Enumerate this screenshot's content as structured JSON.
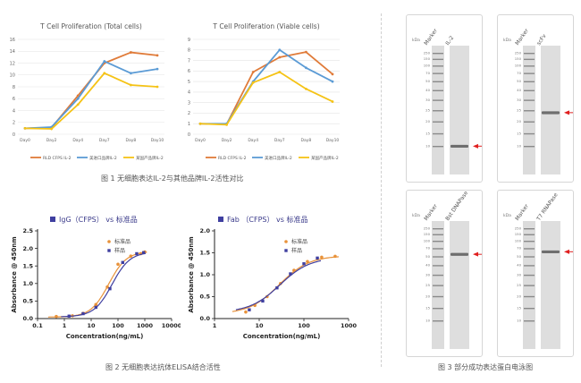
{
  "chart_data": [
    {
      "type": "line",
      "title": "T Cell Proliferation (Total cells)",
      "categories": [
        "Day0",
        "Day2",
        "Day4",
        "Day7",
        "Day8",
        "Day10"
      ],
      "ylim": [
        0,
        16
      ],
      "yticks": [
        0,
        2,
        4,
        6,
        8,
        10,
        12,
        14,
        16
      ],
      "series": [
        {
          "name": "RLD CFPS IL-2",
          "color": "#e07b39",
          "values": [
            1.0,
            1.1,
            6.5,
            12.0,
            13.8,
            13.3
          ]
        },
        {
          "name": "美进口品牌IL-2",
          "color": "#5b9bd5",
          "values": [
            1.0,
            1.2,
            6.0,
            12.3,
            10.3,
            11.0
          ]
        },
        {
          "name": "某国产品牌IL-2",
          "color": "#f5c316",
          "values": [
            1.0,
            0.9,
            5.0,
            10.3,
            8.3,
            8.0
          ]
        }
      ]
    },
    {
      "type": "line",
      "title": "T Cell Proliferation (Viable cells)",
      "categories": [
        "Day0",
        "Day2",
        "Day4",
        "Day7",
        "Day8",
        "Day10"
      ],
      "ylim": [
        0,
        9
      ],
      "yticks": [
        0,
        1,
        2,
        3,
        4,
        5,
        6,
        7,
        8,
        9
      ],
      "series": [
        {
          "name": "RLD CFPS IL-2",
          "color": "#e07b39",
          "values": [
            1.0,
            0.95,
            5.9,
            7.3,
            7.8,
            5.7
          ]
        },
        {
          "name": "美进口品牌IL-2",
          "color": "#5b9bd5",
          "values": [
            1.0,
            1.0,
            5.0,
            8.0,
            6.3,
            5.0
          ]
        },
        {
          "name": "某国产品牌IL-2",
          "color": "#f5c316",
          "values": [
            1.0,
            0.9,
            4.9,
            5.9,
            4.3,
            3.1
          ]
        }
      ]
    },
    {
      "type": "scatter",
      "title": "IgG（CFPS） vs 标准品",
      "xlabel": "Concentration(ng/mL)",
      "ylabel": "Absorbance @ 450nm",
      "xscale": "log",
      "xlim": [
        0.1,
        10000
      ],
      "xticks": [
        "0.1",
        "1",
        "10",
        "100",
        "1000",
        "10000"
      ],
      "ylim": [
        0,
        2.5
      ],
      "yticks": [
        "0.0",
        "0.5",
        "1.0",
        "1.5",
        "2.0",
        "2.5"
      ],
      "series": [
        {
          "name": "标准品",
          "color": "#e8923a",
          "marker": "circle",
          "x": [
            0.5,
            2,
            5,
            15,
            40,
            100,
            300,
            700,
            1000
          ],
          "y": [
            0.06,
            0.08,
            0.15,
            0.4,
            0.9,
            1.55,
            1.78,
            1.85,
            1.9
          ]
        },
        {
          "name": "样品",
          "color": "#3f3fa0",
          "marker": "square",
          "x": [
            1.5,
            5,
            15,
            50,
            150,
            500,
            900
          ],
          "y": [
            0.07,
            0.14,
            0.32,
            0.85,
            1.6,
            1.85,
            1.88
          ]
        }
      ]
    },
    {
      "type": "scatter",
      "title": "Fab （CFPS） vs 标准品",
      "xlabel": "Concentration(ng/mL)",
      "ylabel": "Absorbance @ 450nm",
      "xscale": "log",
      "xlim": [
        1,
        1000
      ],
      "xticks": [
        "1",
        "10",
        "100",
        "1000"
      ],
      "ylim": [
        0,
        2.0
      ],
      "yticks": [
        "0.0",
        "0.5",
        "1.0",
        "1.5",
        "2.0"
      ],
      "series": [
        {
          "name": "标准品",
          "color": "#e8923a",
          "marker": "circle",
          "x": [
            5,
            8,
            15,
            30,
            60,
            120,
            250,
            500
          ],
          "y": [
            0.15,
            0.3,
            0.5,
            0.8,
            1.1,
            1.3,
            1.4,
            1.42
          ]
        },
        {
          "name": "样品",
          "color": "#3f3fa0",
          "marker": "square",
          "x": [
            6,
            12,
            25,
            50,
            100,
            200
          ],
          "y": [
            0.2,
            0.4,
            0.7,
            1.02,
            1.25,
            1.38
          ]
        }
      ]
    }
  ],
  "captions": {
    "fig1": "图 1 无细胞表达IL-2与其他品牌IL-2活性对比",
    "fig2": "图 2 无细胞表达抗体ELISA结合活性",
    "fig3": "图 3 部分成功表达蛋白电泳图"
  },
  "gels": [
    {
      "title": "IL-2",
      "marker_label": "Marker",
      "kda_label": "kDa",
      "marker_values": [
        "250",
        "150",
        "100",
        "70",
        "50",
        "40",
        "30",
        "25",
        "20",
        "15",
        "10"
      ],
      "arrow_color": "#e02020",
      "band_fraction": 0.78
    },
    {
      "title": "scFv",
      "marker_label": "Marker",
      "kda_label": "kDa",
      "marker_values": [
        "250",
        "150",
        "100",
        "70",
        "50",
        "40",
        "30",
        "25",
        "20",
        "15",
        "10"
      ],
      "arrow_color": "#e02020",
      "band_fraction": 0.52
    },
    {
      "title": "Bst DNAPase",
      "marker_label": "Marker",
      "kda_label": "kDa",
      "marker_values": [
        "250",
        "150",
        "100",
        "70",
        "50",
        "40",
        "30",
        "25",
        "20",
        "15",
        "10"
      ],
      "arrow_color": "#e02020",
      "band_fraction": 0.26
    },
    {
      "title": "T7 RNAPase",
      "marker_label": "Marker",
      "kda_label": "kDa",
      "marker_values": [
        "250",
        "150",
        "100",
        "70",
        "50",
        "40",
        "30",
        "25",
        "20",
        "15",
        "10"
      ],
      "arrow_color": "#e02020",
      "band_fraction": 0.24
    }
  ]
}
